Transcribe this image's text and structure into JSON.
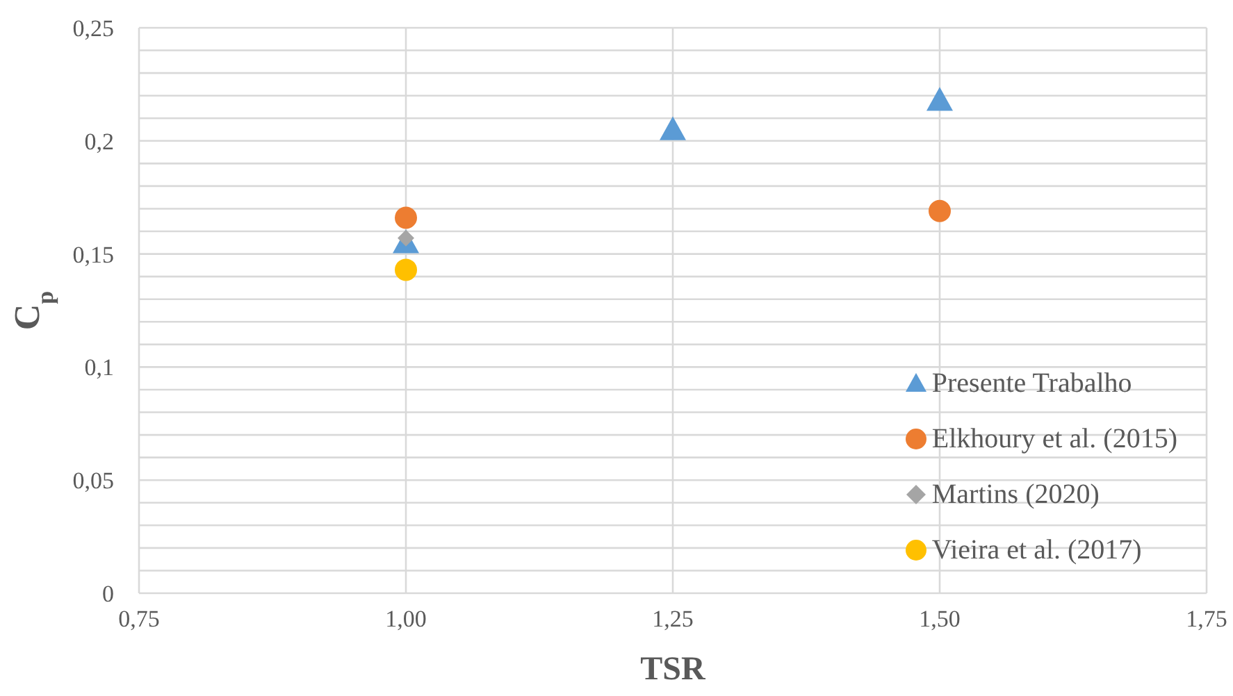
{
  "chart_data": {
    "type": "scatter",
    "xlabel": "TSR",
    "ylabel": "C$_{p}$",
    "xlim": [
      0.75,
      1.75
    ],
    "xticks": [
      {
        "value": 0.75,
        "label": "0,75"
      },
      {
        "value": 1.0,
        "label": "1,00"
      },
      {
        "value": 1.25,
        "label": "1,25"
      },
      {
        "value": 1.5,
        "label": "1,50"
      },
      {
        "value": 1.75,
        "label": "1,75"
      }
    ],
    "ylim": [
      0,
      0.25
    ],
    "yticks": [
      0,
      {
        "value": 0.01,
        "label": null
      },
      {
        "value": 0.02,
        "label": null
      },
      {
        "value": 0.03,
        "label": null
      },
      {
        "value": 0.04,
        "label": null
      },
      {
        "value": 0.05,
        "label": "0,05"
      },
      {
        "value": 0.06,
        "label": null
      },
      {
        "value": 0.07,
        "label": null
      },
      {
        "value": 0.08,
        "label": null
      },
      {
        "value": 0.09,
        "label": null
      },
      {
        "value": 0.1,
        "label": "0,1"
      },
      {
        "value": 0.11,
        "label": null
      },
      {
        "value": 0.12,
        "label": null
      },
      {
        "value": 0.13,
        "label": null
      },
      {
        "value": 0.14,
        "label": null
      },
      {
        "value": 0.15,
        "label": "0,15"
      },
      {
        "value": 0.16,
        "label": null
      },
      {
        "value": 0.17,
        "label": null
      },
      {
        "value": 0.18,
        "label": null
      },
      {
        "value": 0.19,
        "label": null
      },
      {
        "value": 0.2,
        "label": "0,2"
      },
      {
        "value": 0.21,
        "label": null
      },
      {
        "value": 0.22,
        "label": null
      },
      {
        "value": 0.23,
        "label": null
      },
      {
        "value": 0.24,
        "label": null
      },
      {
        "value": 0.25,
        "label": "0,25"
      }
    ],
    "grid": true,
    "legend": "bottom right",
    "series": [
      {
        "name": "Presente Trabalho",
        "color": "#5b9bd5",
        "marker": "triangle",
        "x": [
          1.0,
          1.25,
          1.5
        ],
        "values": [
          0.155,
          0.205,
          0.218
        ]
      },
      {
        "name": "Elkhoury et al. (2015)",
        "color": "#ed7d31",
        "marker": "circle",
        "x": [
          1.0,
          1.5
        ],
        "values": [
          0.166,
          0.169
        ]
      },
      {
        "name": "Martins (2020)",
        "color": "#a5a5a5",
        "marker": "diamond",
        "x": [
          1.0
        ],
        "values": [
          0.157
        ]
      },
      {
        "name": "Vieira et al. (2017)",
        "color": "#ffc000",
        "marker": "circle",
        "x": [
          1.0
        ],
        "values": [
          0.143
        ]
      }
    ]
  }
}
